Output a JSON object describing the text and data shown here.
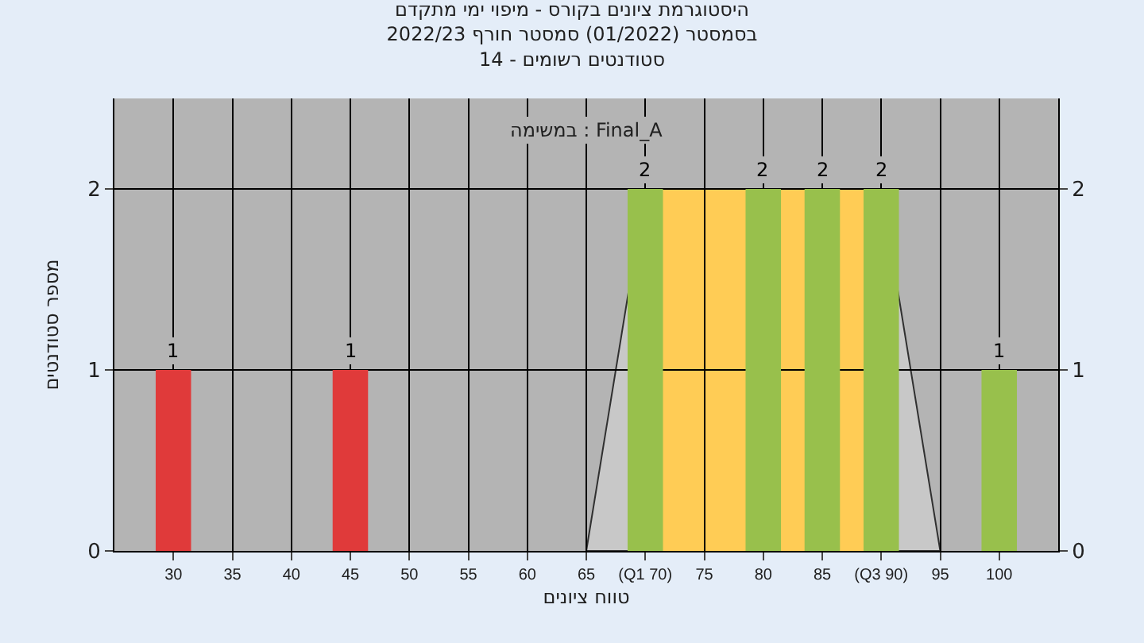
{
  "chart_data": {
    "type": "bar",
    "title": "היסטוגרמת ציונים בקורס - מיפוי ימי מתקדם\nבסמסטר (01/2022) סמסטר חורף 2022/23\nסטודנטים רשומים - 14",
    "xlabel": "טווח ציונים",
    "ylabel": "מספר סטודנטים",
    "annotations": [
      "במשימה : Final_A"
    ],
    "series": [
      {
        "type": "area",
        "color": "#c8c8c8",
        "x": [
          65,
          70,
          90,
          95
        ],
        "values": [
          0,
          2,
          2,
          0
        ]
      },
      {
        "x": [
          30,
          45,
          70,
          80,
          85,
          90,
          100
        ],
        "values": [
          1,
          1,
          2,
          2,
          2,
          2,
          1
        ],
        "value_labels": [
          "1",
          "1",
          "2",
          "2",
          "2",
          "2",
          "1"
        ],
        "colors": [
          "#e03a3a",
          "#e03a3a",
          "#98c04c",
          "#98c04c",
          "#98c04c",
          "#98c04c",
          "#98c04c"
        ]
      }
    ],
    "bands": [
      {
        "axis": "x",
        "from": 70,
        "to": 90,
        "color": "#ffcc55"
      }
    ],
    "xlim": [
      25,
      105
    ],
    "xticks": [
      30,
      35,
      40,
      45,
      50,
      55,
      60,
      65,
      {
        "value": 70,
        "label": "(Q1 70)"
      },
      75,
      80,
      85,
      {
        "value": 90,
        "label": "(Q3 90)"
      },
      95,
      100
    ],
    "ylim": [
      0,
      2.5
    ],
    "yticks": [
      0,
      1,
      2
    ],
    "y2lim": [
      0,
      2.5
    ],
    "y2ticks": [
      0,
      1,
      2
    ],
    "grid": true
  }
}
